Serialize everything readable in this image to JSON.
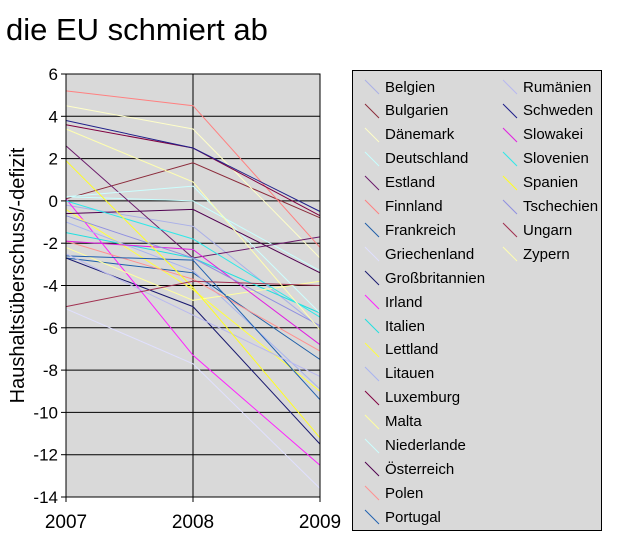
{
  "title": "die EU schmiert ab",
  "chart_data": {
    "type": "line",
    "title": "die EU schmiert ab",
    "xlabel": "",
    "ylabel": "Haushaltsüberschuss/-defizit",
    "x": [
      "2007",
      "2008",
      "2009"
    ],
    "ylim": [
      -14,
      6
    ],
    "yticks": [
      "6",
      "4",
      "2",
      "0",
      "-2",
      "-4",
      "-6",
      "-8",
      "-10",
      "-12",
      "-14"
    ],
    "grid": true,
    "legend_position": "right",
    "series": [
      {
        "name": "Belgien",
        "color": "#aab0e8",
        "values": [
          -0.2,
          -1.2,
          -6.0
        ]
      },
      {
        "name": "Bulgarien",
        "color": "#8b2a3a",
        "values": [
          0.1,
          1.8,
          -0.8
        ]
      },
      {
        "name": "Dänemark",
        "color": "#ffffc8",
        "values": [
          4.5,
          3.4,
          -2.7
        ]
      },
      {
        "name": "Deutschland",
        "color": "#c8ffff",
        "values": [
          0.2,
          0.0,
          -3.3
        ]
      },
      {
        "name": "Estland",
        "color": "#6a1a6a",
        "values": [
          2.6,
          -2.7,
          -1.7
        ]
      },
      {
        "name": "Finnland",
        "color": "#ff8080",
        "values": [
          5.2,
          4.5,
          -2.2
        ]
      },
      {
        "name": "Frankreich",
        "color": "#1f5fa8",
        "values": [
          -2.7,
          -3.4,
          -7.5
        ]
      },
      {
        "name": "Griechenland",
        "color": "#e0e0ff",
        "values": [
          -5.1,
          -7.7,
          -13.6
        ]
      },
      {
        "name": "Großbritannien",
        "color": "#1a1a70",
        "values": [
          -2.7,
          -5.0,
          -11.5
        ]
      },
      {
        "name": "Irland",
        "color": "#ff20ff",
        "values": [
          0.1,
          -7.3,
          -12.5
        ]
      },
      {
        "name": "Italien",
        "color": "#20e0e0",
        "values": [
          -1.5,
          -2.7,
          -5.3
        ]
      },
      {
        "name": "Lettland",
        "color": "#ffff40",
        "values": [
          -0.4,
          -4.2,
          -9.0
        ]
      },
      {
        "name": "Litauen",
        "color": "#a8b4f0",
        "values": [
          -1.0,
          -3.3,
          -8.9
        ]
      },
      {
        "name": "Luxemburg",
        "color": "#800040",
        "values": [
          3.6,
          2.5,
          -0.7
        ]
      },
      {
        "name": "Malta",
        "color": "#ffffa0",
        "values": [
          -2.2,
          -4.7,
          -3.8
        ]
      },
      {
        "name": "Niederlande",
        "color": "#ccffff",
        "values": [
          0.2,
          0.7,
          -5.3
        ]
      },
      {
        "name": "Österreich",
        "color": "#500050",
        "values": [
          -0.6,
          -0.4,
          -3.4
        ]
      },
      {
        "name": "Polen",
        "color": "#ff9090",
        "values": [
          -1.9,
          -3.7,
          -7.1
        ]
      },
      {
        "name": "Portugal",
        "color": "#2060b0",
        "values": [
          -2.6,
          -2.8,
          -9.4
        ]
      },
      {
        "name": "Rumänien",
        "color": "#b8b8f0",
        "values": [
          -2.5,
          -5.4,
          -8.3
        ]
      },
      {
        "name": "Schweden",
        "color": "#20208a",
        "values": [
          3.8,
          2.5,
          -0.5
        ]
      },
      {
        "name": "Slowakei",
        "color": "#e020e0",
        "values": [
          -1.9,
          -2.3,
          -6.8
        ]
      },
      {
        "name": "Slovenien",
        "color": "#30e8e8",
        "values": [
          0.0,
          -1.8,
          -5.5
        ]
      },
      {
        "name": "Spanien",
        "color": "#ffff20",
        "values": [
          1.9,
          -4.1,
          -11.2
        ]
      },
      {
        "name": "Tschechien",
        "color": "#9090e0",
        "values": [
          -0.7,
          -2.7,
          -5.9
        ]
      },
      {
        "name": "Ungarn",
        "color": "#a03050",
        "values": [
          -5.0,
          -3.8,
          -4.0
        ]
      },
      {
        "name": "Zypern",
        "color": "#ffffb0",
        "values": [
          3.4,
          0.9,
          -6.1
        ]
      }
    ]
  }
}
